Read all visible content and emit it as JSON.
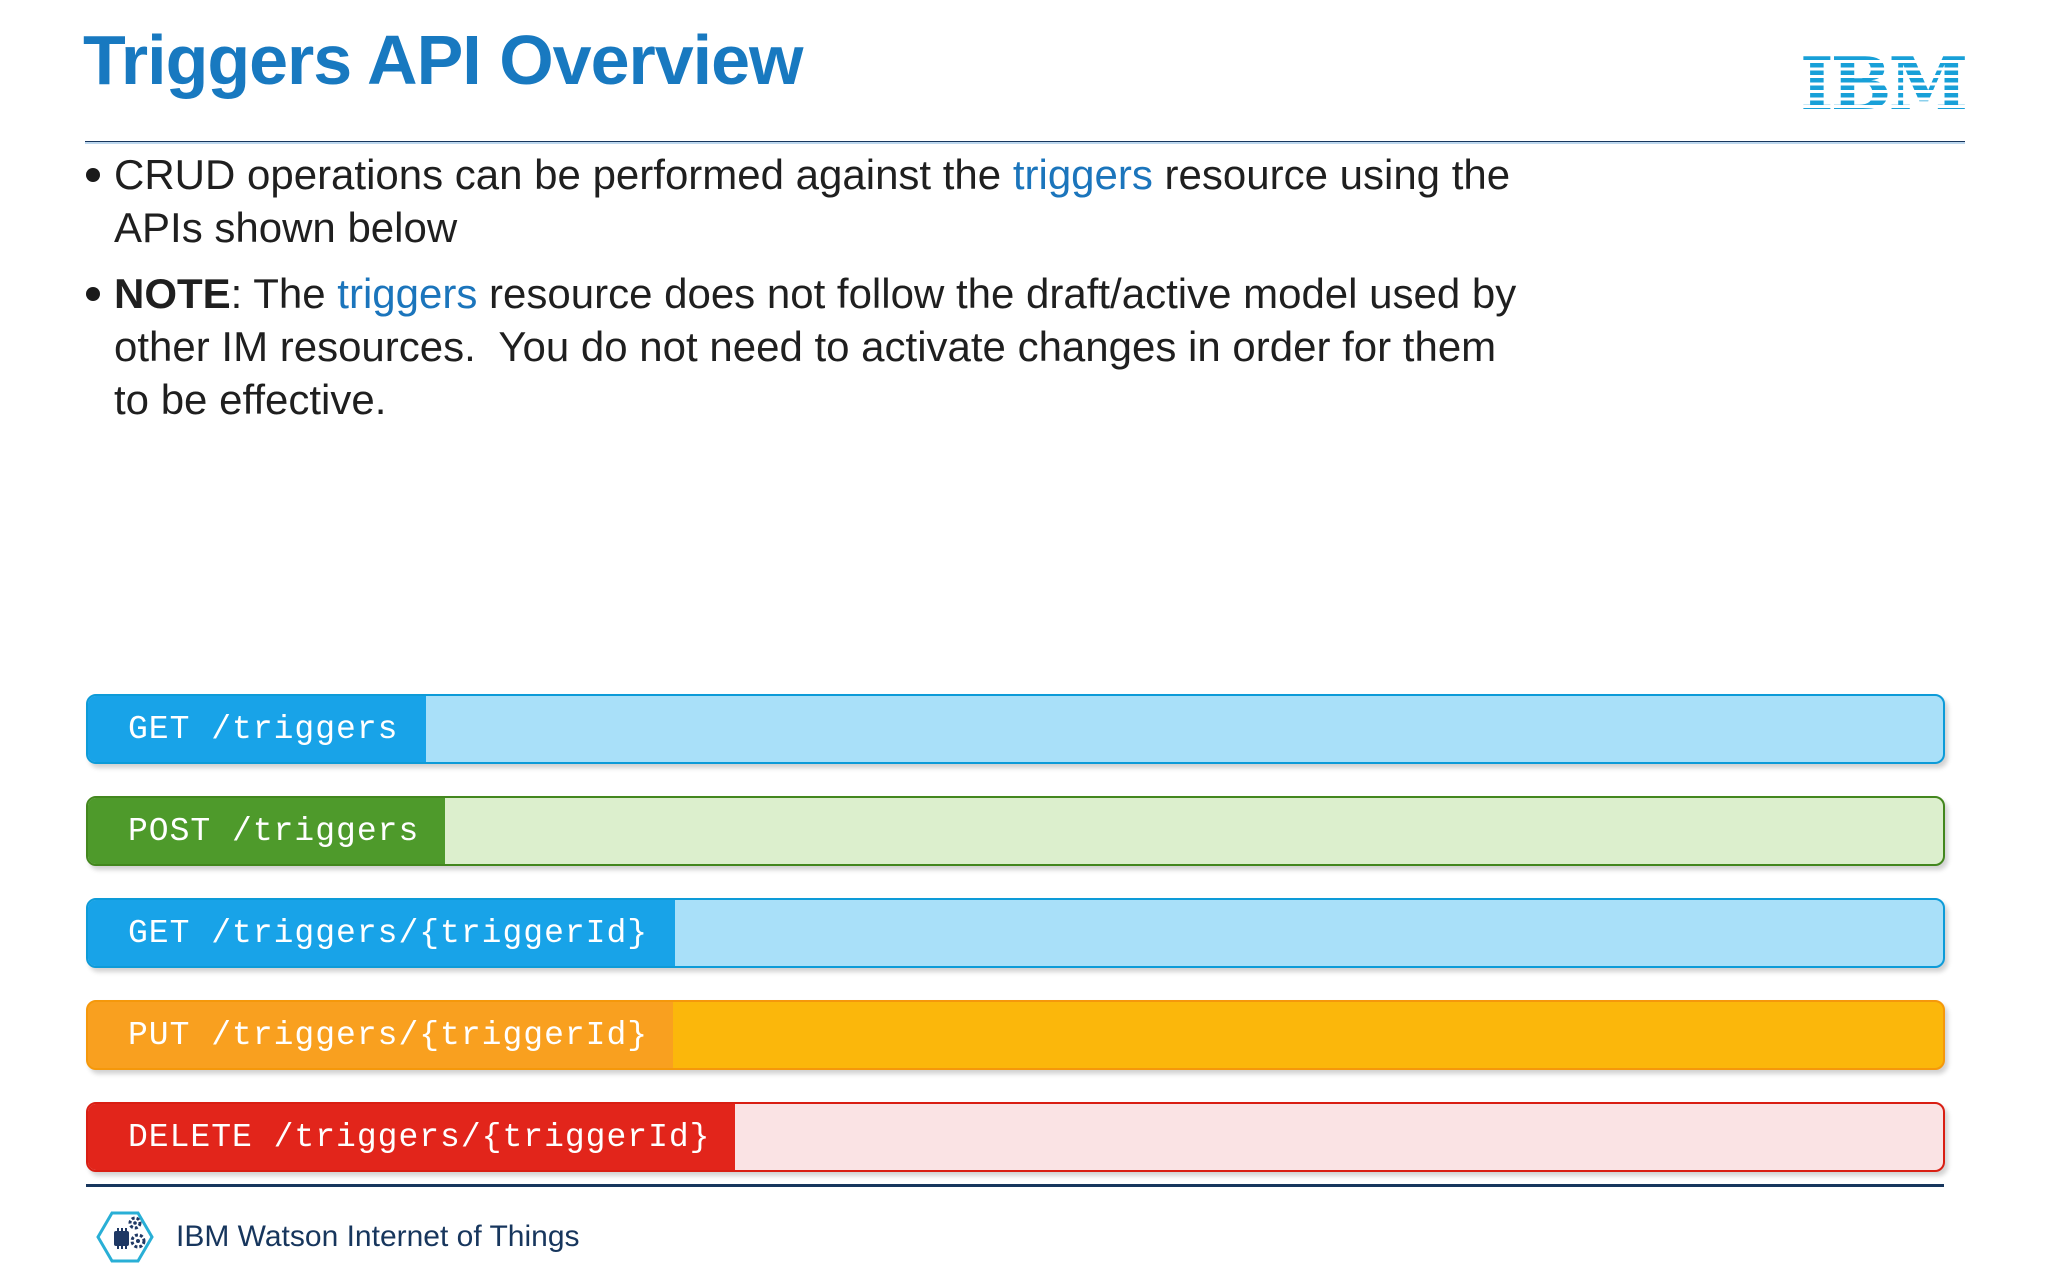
{
  "slide": {
    "title": "Triggers API Overview",
    "brand": {
      "text": "IBM"
    },
    "colors": {
      "title_blue": "#1879C0",
      "accent_blue": "#1B75BC",
      "navy": "#17365D",
      "ibm_logo_blue": "#18A0D8"
    },
    "bullets": [
      {
        "lines": [
          [
            {
              "t": "CRUD operations can be performed against the "
            },
            {
              "t": "triggers",
              "accent": true
            },
            {
              "t": " resource using the"
            }
          ],
          [
            {
              "t": "APIs shown below"
            }
          ]
        ]
      },
      {
        "lines": [
          [
            {
              "t": "NOTE",
              "bold": true
            },
            {
              "t": ": The "
            },
            {
              "t": "triggers",
              "accent": true
            },
            {
              "t": " resource does not follow the draft/active model used by"
            }
          ],
          [
            {
              "t": "other IM resources.  You do not need to activate changes in order for them"
            }
          ],
          [
            {
              "t": "to be effective."
            }
          ]
        ]
      }
    ],
    "api_bars": [
      {
        "label": "GET /triggers",
        "label_bg": "#18A3E8",
        "body_bg": "#A9E0F9",
        "border": "#0D9BD8",
        "label_width": 338
      },
      {
        "label": "POST /triggers",
        "label_bg": "#4E9A2B",
        "body_bg": "#DCEFCD",
        "border": "#43871E",
        "label_width": 357
      },
      {
        "label": "GET /triggers/{triggerId}",
        "label_bg": "#18A3E8",
        "body_bg": "#A9E0F9",
        "border": "#0D9BD8",
        "label_width": 587
      },
      {
        "label": "PUT /triggers/{triggerId}",
        "label_bg": "#F9A01F",
        "body_bg": "#FBB70B",
        "border": "#F5980B",
        "label_width": 585
      },
      {
        "label": "DELETE /triggers/{triggerId}",
        "label_bg": "#E2251B",
        "body_bg": "#FAE3E4",
        "border": "#D91E13",
        "label_width": 647
      }
    ],
    "footer": {
      "label": "IBM Watson Internet of Things",
      "icon": "watson-iot-hexagon"
    }
  }
}
